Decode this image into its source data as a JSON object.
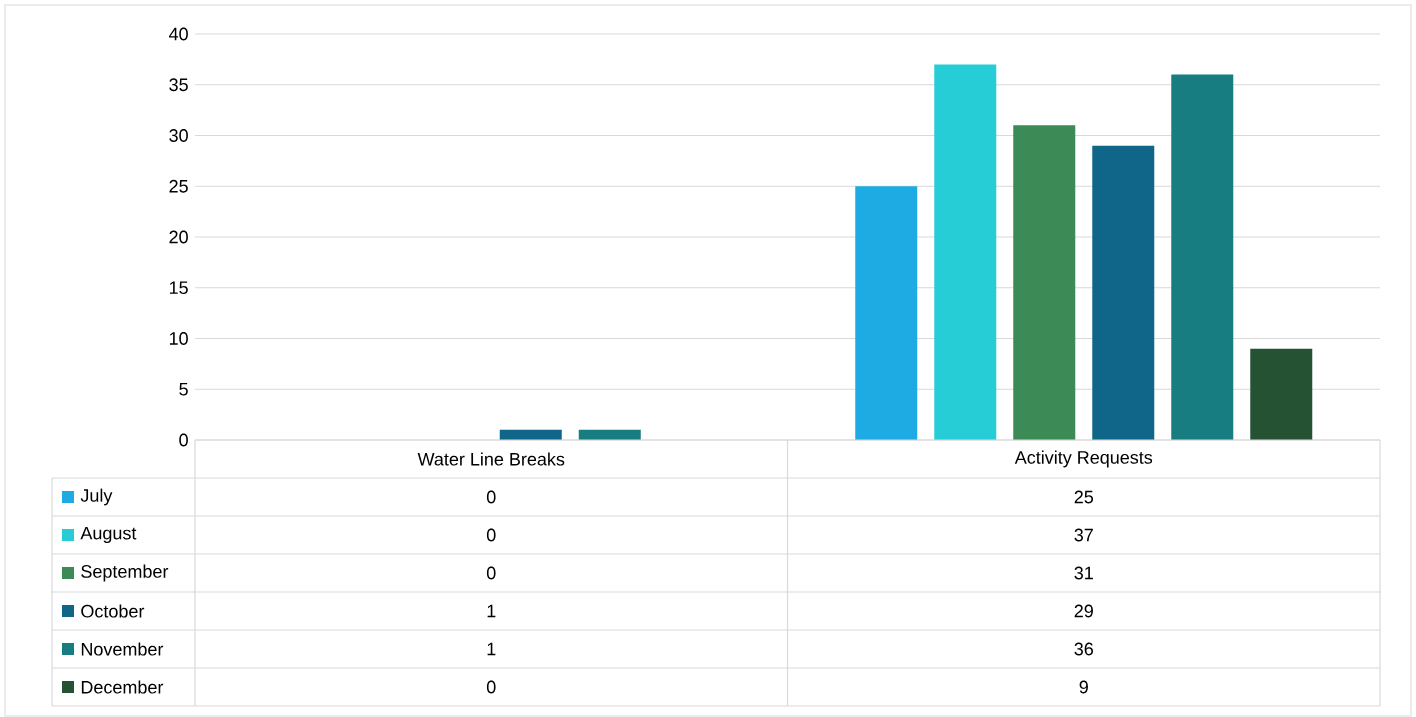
{
  "chart_data": {
    "type": "bar",
    "categories": [
      "Water Line Breaks",
      "Activity Requests"
    ],
    "series": [
      {
        "name": "July",
        "color": "#1eaae2",
        "values": [
          0,
          25
        ]
      },
      {
        "name": "August",
        "color": "#27cdd6",
        "values": [
          0,
          37
        ]
      },
      {
        "name": "September",
        "color": "#3c8a55",
        "values": [
          0,
          31
        ]
      },
      {
        "name": "October",
        "color": "#0f6688",
        "values": [
          1,
          29
        ]
      },
      {
        "name": "November",
        "color": "#177d80",
        "values": [
          1,
          36
        ]
      },
      {
        "name": "December",
        "color": "#245233",
        "values": [
          0,
          9
        ]
      }
    ],
    "ylim": [
      0,
      40
    ],
    "yticks": [
      0,
      5,
      10,
      15,
      20,
      25,
      30,
      35,
      40
    ],
    "grid": "y",
    "legend": "bottom",
    "data_labels": true
  }
}
